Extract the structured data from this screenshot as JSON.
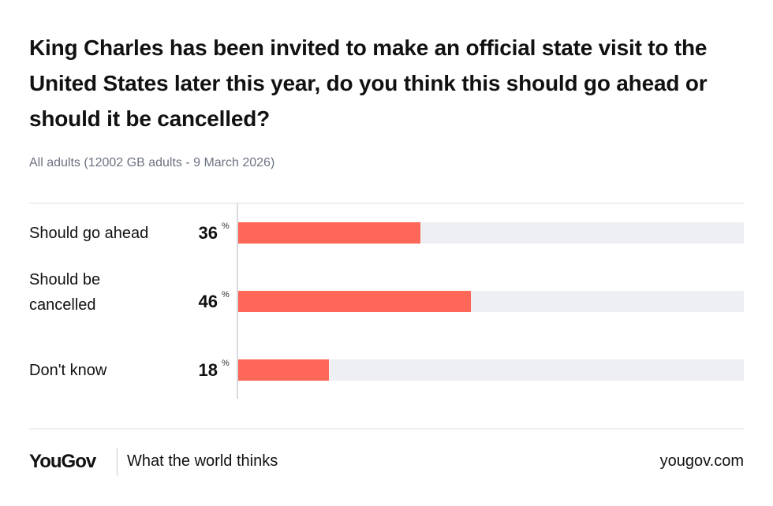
{
  "chart_data": {
    "type": "bar",
    "title": "King Charles has been invited to make an official state visit to the United States later this year, do you think this should go ahead or should it be cancelled?",
    "subtitle": "All adults (12002 GB adults - 9 March 2026)",
    "categories": [
      "Should go ahead",
      "Should be cancelled",
      "Don't know"
    ],
    "values": [
      36,
      46,
      18
    ],
    "value_labels": [
      "36",
      "46",
      "18"
    ],
    "unit": "%",
    "xlim": [
      0,
      100
    ],
    "orientation": "horizontal",
    "grid": false,
    "colors": {
      "bar": "#ff6859",
      "track": "#eeeff3"
    }
  },
  "footer": {
    "logo": "YouGov",
    "tagline": "What the world thinks",
    "url": "yougov.com"
  }
}
